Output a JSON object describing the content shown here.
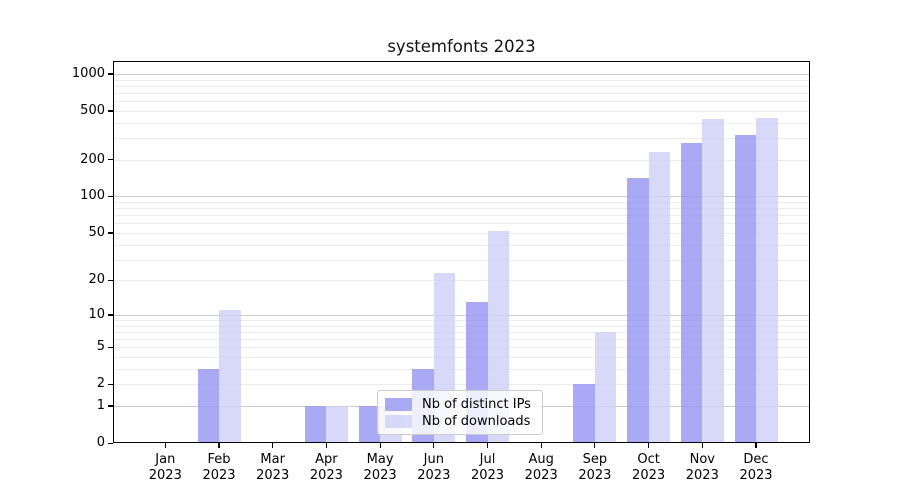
{
  "chart_data": {
    "type": "bar",
    "title": "systemfonts 2023",
    "categories": [
      "Jan",
      "Feb",
      "Mar",
      "Apr",
      "May",
      "Jun",
      "Jul",
      "Aug",
      "Sep",
      "Oct",
      "Nov",
      "Dec"
    ],
    "category_year": "2023",
    "series": [
      {
        "name": "Nb of distinct IPs",
        "color": "rgba(148,148,242,0.8)",
        "swatch_hex": "#a9a9f4",
        "values": [
          0,
          3,
          0,
          1,
          1,
          3,
          13,
          0,
          2,
          142,
          274,
          321
        ]
      },
      {
        "name": "Nb of downloads",
        "color": "rgba(206,206,247,0.8)",
        "swatch_hex": "#d8d8f8",
        "values": [
          0,
          11,
          0,
          1,
          1,
          23,
          52,
          0,
          7,
          232,
          427,
          435
        ]
      }
    ],
    "y_axis": {
      "scale": "log1p",
      "tick_values": [
        0,
        1,
        2,
        5,
        10,
        20,
        50,
        100,
        200,
        500,
        1000
      ],
      "major_grid_values": [
        1,
        10,
        100,
        1000
      ],
      "minor_grid_values": [
        2,
        3,
        4,
        5,
        6,
        7,
        8,
        9,
        20,
        30,
        40,
        50,
        60,
        70,
        80,
        90,
        200,
        300,
        400,
        500,
        600,
        700,
        800,
        900
      ],
      "ylim": [
        0,
        1250
      ]
    },
    "xlabel": "",
    "ylabel": "",
    "grid": true,
    "legend_position": "inside-lower-center"
  },
  "colors": {
    "background": "#ffffff",
    "spine": "#000000",
    "grid_minor": "#ececec",
    "grid_major": "#cccccc",
    "text": "#000000",
    "legend_border": "#cccccc",
    "legend_bg": "rgba(255,255,255,0.8)"
  }
}
